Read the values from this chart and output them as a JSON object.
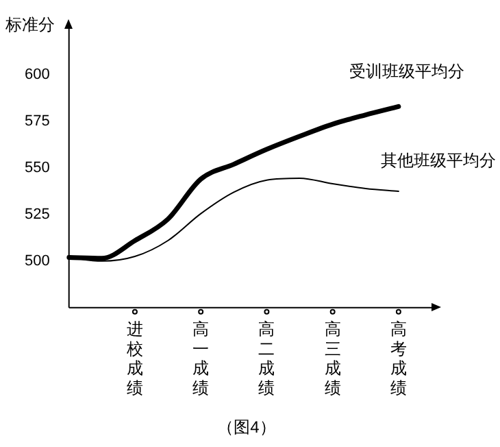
{
  "chart_data": {
    "type": "line",
    "ylabel": "标准分",
    "annotations": [
      "（图4）"
    ],
    "categories": [
      null,
      null,
      "进校成绩",
      null,
      "高一成绩",
      null,
      "高二成绩",
      null,
      "高三成绩",
      null,
      "高考成绩",
      null
    ],
    "ylim": [
      475,
      625
    ],
    "yticks": [
      500,
      525,
      550,
      575,
      600
    ],
    "grid": false,
    "marker": "none",
    "line_style": "solid",
    "series": [
      {
        "name": "受训班级平均分",
        "color": "#000000",
        "values": [
          502,
          501.5,
          511,
          522.5,
          544,
          552,
          560,
          567,
          573.5,
          578.5,
          583,
          null
        ]
      },
      {
        "name": "其他班级平均分",
        "color": "#000000",
        "values": [
          502,
          500,
          502.5,
          511,
          525.5,
          537,
          543.5,
          544.5,
          541.5,
          539,
          537.5,
          null
        ]
      }
    ]
  }
}
